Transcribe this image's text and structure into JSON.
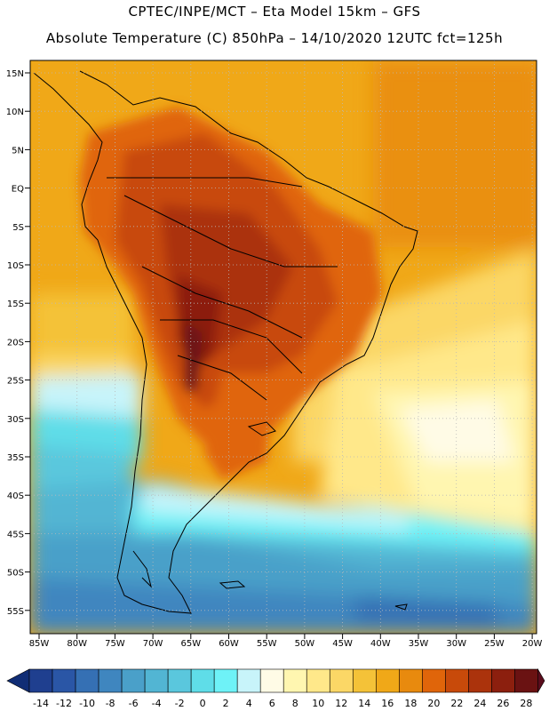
{
  "title_line1": "CPTEC/INPE/MCT –  Eta Model 15km – GFS",
  "title_line2": "Absolute Temperature (C) 850hPa – 14/10/2020 12UTC fct=125h",
  "y_axis_labels": [
    "15N",
    "10N",
    "5N",
    "EQ",
    "5S",
    "10S",
    "15S",
    "20S",
    "25S",
    "30S",
    "35S",
    "40S",
    "45S",
    "50S",
    "55S"
  ],
  "x_axis_labels": [
    "85W",
    "80W",
    "75W",
    "70W",
    "65W",
    "60W",
    "55W",
    "50W",
    "45W",
    "40W",
    "35W",
    "30W",
    "25W",
    "20W"
  ],
  "colorbar": {
    "labels": [
      "-14",
      "-12",
      "-10",
      "-8",
      "-6",
      "-4",
      "-2",
      "0",
      "2",
      "4",
      "6",
      "8",
      "10",
      "12",
      "14",
      "16",
      "18",
      "20",
      "22",
      "24",
      "26",
      "28"
    ],
    "colors": [
      "#1f3f8f",
      "#2a56a6",
      "#3570b4",
      "#3f86bf",
      "#4aa0c9",
      "#52b5d3",
      "#5ac7dd",
      "#5fdde8",
      "#6ef2f7",
      "#c8f4fa",
      "#fffbe6",
      "#fff6b0",
      "#ffe88a",
      "#fbd766",
      "#f4c238",
      "#f0a818",
      "#e88a0e",
      "#e0650a",
      "#c84a0a",
      "#ab330c",
      "#8c1f0e",
      "#6a1212"
    ],
    "low_color": "#102d75",
    "high_color": "#5a0c1c"
  }
}
